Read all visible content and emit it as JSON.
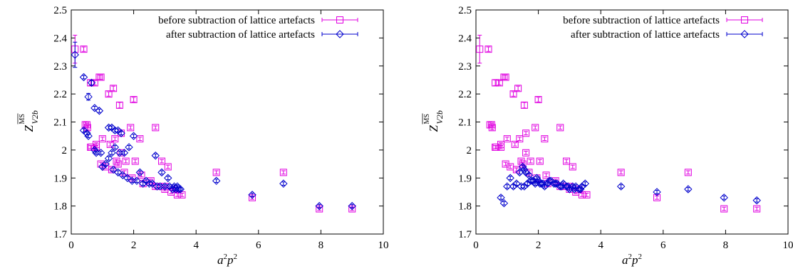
{
  "chart_data": [
    {
      "type": "scatter",
      "xlabel_base": "a",
      "xlabel_mid": "p",
      "xlabel_exp1": "2",
      "xlabel_exp2": "2",
      "ylabel_main": "Z",
      "ylabel_sup": "MS",
      "ylabel_sub": "V2b",
      "xlim": [
        0,
        10
      ],
      "ylim": [
        1.7,
        2.5
      ],
      "xticks": [
        0,
        2,
        4,
        6,
        8,
        10
      ],
      "yticks": [
        1.7,
        1.8,
        1.9,
        2,
        2.1,
        2.2,
        2.3,
        2.4,
        2.5
      ],
      "ytick_labels": [
        "1.7",
        "1.8",
        "1.9",
        "2",
        "2.1",
        "2.2",
        "2.3",
        "2.4",
        "2.5"
      ],
      "grid": false,
      "legend": "top-right",
      "series": [
        {
          "name": "before subtraction of lattice artefacts",
          "color": "#e000e0",
          "marker": "square",
          "x": [
            0.12,
            0.4,
            0.45,
            0.52,
            0.62,
            0.75,
            0.9,
            0.95,
            1.2,
            1.35,
            1.55,
            2.0,
            0.62,
            0.8,
            1.0,
            1.25,
            1.4,
            1.6,
            1.9,
            2.2,
            2.7,
            2.9,
            3.1,
            0.5,
            0.65,
            0.8,
            0.95,
            1.1,
            1.3,
            1.45,
            1.6,
            1.75,
            2.05,
            2.25,
            2.55,
            2.8,
            3.0,
            3.2,
            1.3,
            1.5,
            1.7,
            1.95,
            2.3,
            2.7,
            3.0,
            3.3,
            3.4,
            3.55,
            4.65,
            5.8,
            6.8,
            7.95,
            9.0
          ],
          "y": [
            2.36,
            2.36,
            2.09,
            2.08,
            2.24,
            2.24,
            2.26,
            2.26,
            2.2,
            2.22,
            2.16,
            2.18,
            2.01,
            2.01,
            2.04,
            2.02,
            2.04,
            2.06,
            2.08,
            2.04,
            2.08,
            1.96,
            1.94,
            2.09,
            2.01,
            2.02,
            1.95,
            1.94,
            1.93,
            1.96,
            1.99,
            1.96,
            1.96,
            1.91,
            1.89,
            1.87,
            1.87,
            1.85,
            1.93,
            1.95,
            1.92,
            1.9,
            1.88,
            1.87,
            1.86,
            1.86,
            1.84,
            1.84,
            1.92,
            1.83,
            1.92,
            1.79,
            1.79
          ],
          "yerr": [
            0.05,
            0.008,
            0.01,
            0.008,
            0.01,
            0.008,
            0.008,
            0.008,
            0.008,
            0.008,
            0.01,
            0.008,
            0.006,
            0.006,
            0.006,
            0.006,
            0.006,
            0.006,
            0.006,
            0.006,
            0.006,
            0.006,
            0.006,
            0.006,
            0.006,
            0.006,
            0.006,
            0.006,
            0.006,
            0.006,
            0.006,
            0.006,
            0.006,
            0.006,
            0.006,
            0.006,
            0.006,
            0.006,
            0.006,
            0.006,
            0.006,
            0.006,
            0.006,
            0.006,
            0.006,
            0.006,
            0.006,
            0.006,
            0.006,
            0.006,
            0.006,
            0.006,
            0.006
          ]
        },
        {
          "name": "after subtraction of lattice artefacts",
          "color": "#0000cc",
          "marker": "diamond",
          "x": [
            0.12,
            0.4,
            0.55,
            0.65,
            0.75,
            0.9,
            0.4,
            0.5,
            0.55,
            0.75,
            0.8,
            0.95,
            1.2,
            1.3,
            1.4,
            1.5,
            1.6,
            1.0,
            1.1,
            1.2,
            1.3,
            1.4,
            1.55,
            1.7,
            1.85,
            2.0,
            2.2,
            2.4,
            2.7,
            2.9,
            3.1,
            3.3,
            3.4,
            3.5,
            1.35,
            1.5,
            1.65,
            1.8,
            1.95,
            2.1,
            2.3,
            2.5,
            2.6,
            2.75,
            2.85,
            3.0,
            3.15,
            3.25,
            3.35,
            3.45,
            4.65,
            5.8,
            6.8,
            7.95,
            9.0
          ],
          "y": [
            2.34,
            2.26,
            2.19,
            2.24,
            2.15,
            2.14,
            2.07,
            2.06,
            2.05,
            2.0,
            1.99,
            1.99,
            2.08,
            2.08,
            2.07,
            2.07,
            2.06,
            1.94,
            1.95,
            1.97,
            1.99,
            2.01,
            1.99,
            1.99,
            2.01,
            2.05,
            1.92,
            1.89,
            1.98,
            1.92,
            1.9,
            1.87,
            1.87,
            1.86,
            1.93,
            1.92,
            1.91,
            1.9,
            1.89,
            1.89,
            1.88,
            1.88,
            1.88,
            1.87,
            1.87,
            1.87,
            1.87,
            1.86,
            1.86,
            1.86,
            1.89,
            1.84,
            1.88,
            1.8,
            1.8
          ],
          "yerr": [
            0.045,
            0.006,
            0.012,
            0.008,
            0.006,
            0.006,
            0.006,
            0.006,
            0.006,
            0.006,
            0.006,
            0.006,
            0.006,
            0.006,
            0.006,
            0.006,
            0.006,
            0.006,
            0.006,
            0.006,
            0.006,
            0.006,
            0.006,
            0.006,
            0.006,
            0.006,
            0.006,
            0.006,
            0.006,
            0.006,
            0.006,
            0.006,
            0.006,
            0.006,
            0.006,
            0.006,
            0.006,
            0.006,
            0.006,
            0.006,
            0.006,
            0.006,
            0.006,
            0.006,
            0.006,
            0.006,
            0.006,
            0.006,
            0.006,
            0.006,
            0.006,
            0.006,
            0.006,
            0.006,
            0.006
          ]
        }
      ]
    },
    {
      "type": "scatter",
      "xlabel_base": "a",
      "xlabel_mid": "p",
      "xlabel_exp1": "2",
      "xlabel_exp2": "2",
      "ylabel_main": "Z",
      "ylabel_sup": "MS",
      "ylabel_sub": "V2b",
      "xlim": [
        0,
        10
      ],
      "ylim": [
        1.7,
        2.5
      ],
      "xticks": [
        0,
        2,
        4,
        6,
        8,
        10
      ],
      "yticks": [
        1.7,
        1.8,
        1.9,
        2,
        2.1,
        2.2,
        2.3,
        2.4,
        2.5
      ],
      "ytick_labels": [
        "1.7",
        "1.8",
        "1.9",
        "2",
        "2.1",
        "2.2",
        "2.3",
        "2.4",
        "2.5"
      ],
      "grid": false,
      "legend": "top-right",
      "series": [
        {
          "name": "before subtraction of lattice artefacts",
          "color": "#e000e0",
          "marker": "square",
          "x": [
            0.12,
            0.4,
            0.45,
            0.52,
            0.62,
            0.75,
            0.9,
            0.95,
            1.2,
            1.35,
            1.55,
            2.0,
            0.62,
            0.8,
            1.0,
            1.25,
            1.4,
            1.6,
            1.9,
            2.2,
            2.7,
            2.9,
            3.1,
            0.5,
            0.65,
            0.8,
            0.95,
            1.1,
            1.3,
            1.45,
            1.6,
            1.75,
            2.05,
            2.25,
            2.55,
            2.8,
            3.0,
            3.2,
            1.3,
            1.5,
            1.7,
            1.95,
            2.3,
            2.7,
            3.0,
            3.3,
            3.4,
            3.55,
            4.65,
            5.8,
            6.8,
            7.95,
            9.0
          ],
          "y": [
            2.36,
            2.36,
            2.09,
            2.08,
            2.24,
            2.24,
            2.26,
            2.26,
            2.2,
            2.22,
            2.16,
            2.18,
            2.01,
            2.01,
            2.04,
            2.02,
            2.04,
            2.06,
            2.08,
            2.04,
            2.08,
            1.96,
            1.94,
            2.09,
            2.01,
            2.02,
            1.95,
            1.94,
            1.93,
            1.96,
            1.99,
            1.96,
            1.96,
            1.91,
            1.89,
            1.87,
            1.87,
            1.85,
            1.93,
            1.95,
            1.92,
            1.9,
            1.88,
            1.87,
            1.86,
            1.86,
            1.84,
            1.84,
            1.92,
            1.83,
            1.92,
            1.79,
            1.79
          ],
          "yerr": [
            0.05,
            0.008,
            0.01,
            0.008,
            0.01,
            0.008,
            0.008,
            0.008,
            0.008,
            0.008,
            0.01,
            0.008,
            0.006,
            0.006,
            0.006,
            0.006,
            0.006,
            0.006,
            0.006,
            0.006,
            0.006,
            0.006,
            0.006,
            0.006,
            0.006,
            0.006,
            0.006,
            0.006,
            0.006,
            0.006,
            0.006,
            0.006,
            0.006,
            0.006,
            0.006,
            0.006,
            0.006,
            0.006,
            0.006,
            0.006,
            0.006,
            0.006,
            0.006,
            0.006,
            0.006,
            0.006,
            0.006,
            0.006,
            0.006,
            0.006,
            0.006,
            0.006,
            0.006
          ]
        },
        {
          "name": "after subtraction of lattice artefacts",
          "color": "#0000cc",
          "marker": "diamond",
          "x": [
            0.8,
            0.9,
            1.0,
            1.1,
            1.2,
            1.3,
            1.4,
            1.5,
            1.55,
            1.6,
            1.7,
            1.8,
            1.9,
            2.0,
            2.1,
            2.2,
            2.3,
            2.4,
            2.5,
            2.6,
            2.7,
            2.8,
            2.9,
            3.0,
            3.1,
            3.2,
            3.3,
            3.4,
            3.5,
            1.45,
            1.55,
            1.65,
            1.75,
            1.85,
            1.95,
            2.05,
            2.15,
            2.35,
            2.55,
            2.75,
            2.95,
            3.15,
            3.35,
            4.65,
            5.8,
            6.8,
            7.95,
            9.0
          ],
          "y": [
            1.83,
            1.81,
            1.87,
            1.9,
            1.87,
            1.88,
            1.92,
            1.94,
            1.93,
            1.92,
            1.91,
            1.89,
            1.88,
            1.89,
            1.88,
            1.87,
            1.88,
            1.89,
            1.88,
            1.88,
            1.87,
            1.88,
            1.87,
            1.86,
            1.87,
            1.87,
            1.86,
            1.87,
            1.88,
            1.87,
            1.87,
            1.88,
            1.89,
            1.89,
            1.9,
            1.88,
            1.88,
            1.89,
            1.88,
            1.87,
            1.87,
            1.86,
            1.86,
            1.87,
            1.85,
            1.86,
            1.83,
            1.82
          ],
          "yerr": [
            0.006,
            0.006,
            0.006,
            0.006,
            0.006,
            0.006,
            0.006,
            0.006,
            0.006,
            0.006,
            0.006,
            0.006,
            0.006,
            0.006,
            0.006,
            0.006,
            0.006,
            0.006,
            0.006,
            0.006,
            0.006,
            0.006,
            0.006,
            0.006,
            0.006,
            0.006,
            0.006,
            0.006,
            0.006,
            0.006,
            0.006,
            0.006,
            0.006,
            0.006,
            0.006,
            0.006,
            0.006,
            0.006,
            0.006,
            0.006,
            0.006,
            0.006,
            0.006,
            0.006,
            0.006,
            0.006,
            0.006,
            0.006
          ]
        }
      ]
    }
  ]
}
